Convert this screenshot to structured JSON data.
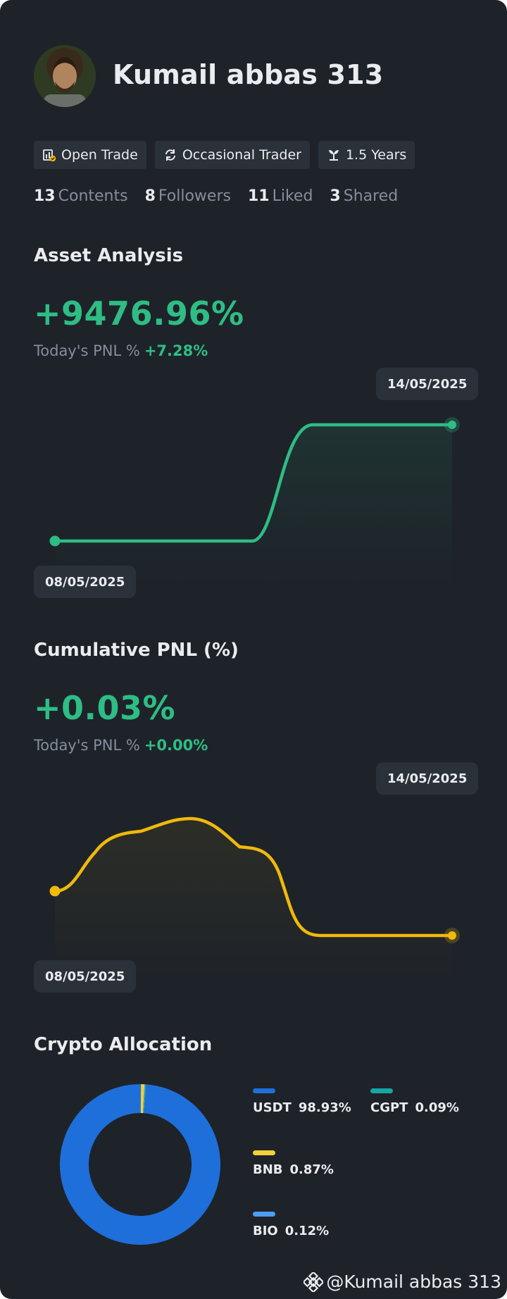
{
  "profile": {
    "username": "Kumail abbas 313",
    "tags": [
      {
        "label": "Open Trade",
        "icon": "open-trade-icon"
      },
      {
        "label": "Occasional Trader",
        "icon": "refresh-cycle-icon"
      },
      {
        "label": "1.5 Years",
        "icon": "sprout-icon"
      }
    ],
    "stats": [
      {
        "value": "13",
        "label": "Contents"
      },
      {
        "value": "8",
        "label": "Followers"
      },
      {
        "value": "11",
        "label": "Liked"
      },
      {
        "value": "3",
        "label": "Shared"
      }
    ]
  },
  "asset_analysis": {
    "title": "Asset Analysis",
    "value": "+9476.96%",
    "today_label": "Today's PNL %",
    "today_value": "+7.28%",
    "start_date": "08/05/2025",
    "end_date": "14/05/2025",
    "color": "#2EBD85"
  },
  "cumulative_pnl": {
    "title": "Cumulative PNL (%)",
    "value": "+0.03%",
    "today_label": "Today's PNL %",
    "today_value": "+0.00%",
    "start_date": "08/05/2025",
    "end_date": "14/05/2025",
    "color": "#F0B90B"
  },
  "allocation": {
    "title": "Crypto Allocation",
    "items": [
      {
        "name": "USDT",
        "pct": "98.93%",
        "value": 98.93,
        "color": "#1E6FD9"
      },
      {
        "name": "CGPT",
        "pct": "0.09%",
        "value": 0.09,
        "color": "#18A6A3"
      },
      {
        "name": "BNB",
        "pct": "0.87%",
        "value": 0.87,
        "color": "#F3D03A"
      },
      {
        "name": "BIO",
        "pct": "0.12%",
        "value": 0.12,
        "color": "#4E9DF2"
      }
    ]
  },
  "footer": {
    "handle": "@Kumail abbas 313",
    "icon": "binance-logo-icon"
  }
}
